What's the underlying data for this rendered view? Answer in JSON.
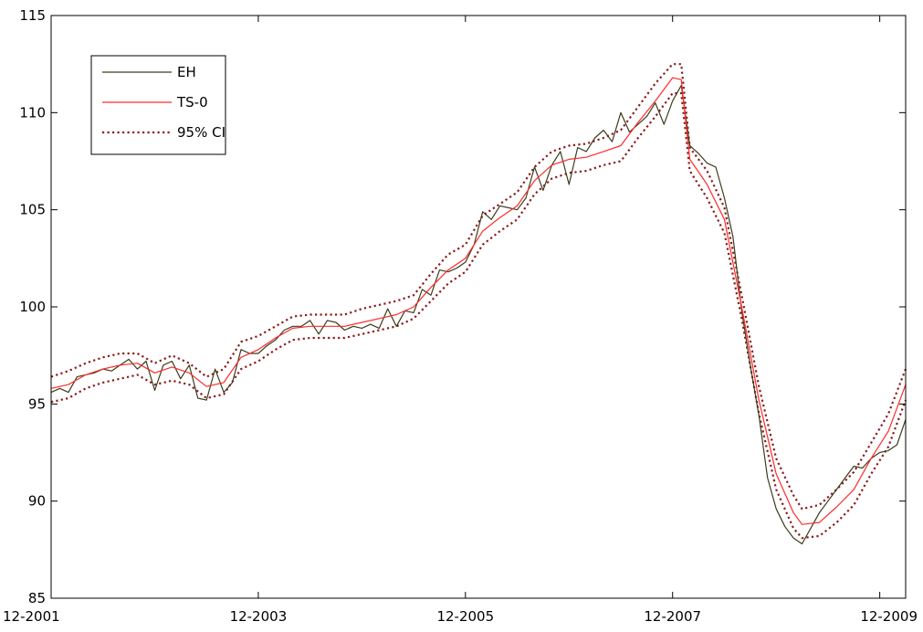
{
  "chart_data": {
    "type": "line",
    "title": "",
    "xlabel": "",
    "ylabel": "",
    "x_range": [
      "2001-12",
      "2009-12"
    ],
    "x_tick_labels": [
      "12-2001",
      "12-2003",
      "12-2005",
      "12-2007",
      "12-2009"
    ],
    "y_ticks": [
      85,
      90,
      95,
      100,
      105,
      110,
      115
    ],
    "ylim": [
      85,
      115
    ],
    "grid": false,
    "legend_position": "top-left",
    "legend": [
      "EH",
      "TS-0",
      "95% CI"
    ],
    "colors": {
      "EH": "#3c3c1e",
      "TS-0": "#ff2a2a",
      "CI": "#8b1a1a"
    },
    "series": [
      {
        "name": "EH",
        "points": [
          [
            "2001-12",
            95.6
          ],
          [
            "2002-01",
            95.8
          ],
          [
            "2002-02",
            95.6
          ],
          [
            "2002-03",
            96.4
          ],
          [
            "2002-04",
            96.5
          ],
          [
            "2002-05",
            96.6
          ],
          [
            "2002-06",
            96.8
          ],
          [
            "2002-07",
            96.7
          ],
          [
            "2002-08",
            97.0
          ],
          [
            "2002-09",
            97.3
          ],
          [
            "2002-10",
            96.8
          ],
          [
            "2002-11",
            97.2
          ],
          [
            "2002-12",
            95.7
          ],
          [
            "2003-01",
            97.0
          ],
          [
            "2003-02",
            97.2
          ],
          [
            "2003-03",
            96.3
          ],
          [
            "2003-04",
            97.0
          ],
          [
            "2003-05",
            95.3
          ],
          [
            "2003-06",
            95.2
          ],
          [
            "2003-07",
            96.8
          ],
          [
            "2003-08",
            95.6
          ],
          [
            "2003-09",
            96.1
          ],
          [
            "2003-10",
            97.8
          ],
          [
            "2003-11",
            97.6
          ],
          [
            "2003-12",
            97.6
          ],
          [
            "2004-01",
            98.0
          ],
          [
            "2004-02",
            98.3
          ],
          [
            "2004-03",
            98.8
          ],
          [
            "2004-04",
            99.0
          ],
          [
            "2004-05",
            99.0
          ],
          [
            "2004-06",
            99.3
          ],
          [
            "2004-07",
            98.6
          ],
          [
            "2004-08",
            99.3
          ],
          [
            "2004-09",
            99.2
          ],
          [
            "2004-10",
            98.8
          ],
          [
            "2004-11",
            99.0
          ],
          [
            "2004-12",
            98.9
          ],
          [
            "2005-01",
            99.1
          ],
          [
            "2005-02",
            98.9
          ],
          [
            "2005-03",
            99.9
          ],
          [
            "2005-04",
            99.0
          ],
          [
            "2005-05",
            99.8
          ],
          [
            "2005-06",
            99.7
          ],
          [
            "2005-07",
            100.9
          ],
          [
            "2005-08",
            100.6
          ],
          [
            "2005-09",
            101.9
          ],
          [
            "2005-10",
            101.8
          ],
          [
            "2005-11",
            102.0
          ],
          [
            "2005-12",
            102.3
          ],
          [
            "2006-01",
            103.2
          ],
          [
            "2006-02",
            104.9
          ],
          [
            "2006-03",
            104.5
          ],
          [
            "2006-04",
            105.2
          ],
          [
            "2006-05",
            105.1
          ],
          [
            "2006-06",
            105.0
          ],
          [
            "2006-07",
            105.6
          ],
          [
            "2006-08",
            107.2
          ],
          [
            "2006-09",
            106.0
          ],
          [
            "2006-10",
            107.3
          ],
          [
            "2006-11",
            108.0
          ],
          [
            "2006-12",
            106.3
          ],
          [
            "2007-01",
            108.2
          ],
          [
            "2007-02",
            108.0
          ],
          [
            "2007-03",
            108.7
          ],
          [
            "2007-04",
            109.1
          ],
          [
            "2007-05",
            108.5
          ],
          [
            "2007-06",
            110.0
          ],
          [
            "2007-07",
            109.0
          ],
          [
            "2007-08",
            109.4
          ],
          [
            "2007-09",
            109.8
          ],
          [
            "2007-10",
            110.5
          ],
          [
            "2007-11",
            109.4
          ],
          [
            "2007-12",
            110.6
          ],
          [
            "2008-01",
            111.4
          ],
          [
            "2008-02",
            108.3
          ],
          [
            "2008-03",
            107.9
          ],
          [
            "2008-04",
            107.4
          ],
          [
            "2008-05",
            107.2
          ],
          [
            "2008-06",
            105.6
          ],
          [
            "2008-07",
            103.6
          ],
          [
            "2008-08",
            99.8
          ],
          [
            "2008-09",
            97.0
          ],
          [
            "2008-10",
            94.4
          ],
          [
            "2008-11",
            91.2
          ],
          [
            "2008-12",
            89.6
          ],
          [
            "2009-01",
            88.7
          ],
          [
            "2009-02",
            88.1
          ],
          [
            "2009-03",
            87.8
          ],
          [
            "2009-04",
            88.6
          ],
          [
            "2009-05",
            89.4
          ],
          [
            "2009-06",
            90.0
          ],
          [
            "2009-07",
            90.6
          ],
          [
            "2009-08",
            91.2
          ],
          [
            "2009-09",
            91.8
          ],
          [
            "2009-10",
            91.7
          ],
          [
            "2009-11",
            92.2
          ],
          [
            "2009-12",
            92.5
          ],
          [
            "2010-01",
            92.6
          ],
          [
            "2010-02",
            92.9
          ],
          [
            "2010-03",
            94.2
          ]
        ]
      },
      {
        "name": "TS-0",
        "points": [
          [
            "2001-12",
            95.8
          ],
          [
            "2002-02",
            96.0
          ],
          [
            "2002-04",
            96.5
          ],
          [
            "2002-06",
            96.8
          ],
          [
            "2002-08",
            97.0
          ],
          [
            "2002-10",
            97.1
          ],
          [
            "2002-12",
            96.6
          ],
          [
            "2003-02",
            96.9
          ],
          [
            "2003-04",
            96.6
          ],
          [
            "2003-06",
            95.9
          ],
          [
            "2003-08",
            96.1
          ],
          [
            "2003-10",
            97.4
          ],
          [
            "2003-12",
            97.8
          ],
          [
            "2004-02",
            98.4
          ],
          [
            "2004-04",
            98.9
          ],
          [
            "2004-06",
            99.0
          ],
          [
            "2004-08",
            99.0
          ],
          [
            "2004-10",
            99.0
          ],
          [
            "2004-12",
            99.2
          ],
          [
            "2005-02",
            99.4
          ],
          [
            "2005-04",
            99.6
          ],
          [
            "2005-06",
            100.0
          ],
          [
            "2005-08",
            101.0
          ],
          [
            "2005-10",
            101.9
          ],
          [
            "2005-12",
            102.5
          ],
          [
            "2006-02",
            103.9
          ],
          [
            "2006-04",
            104.6
          ],
          [
            "2006-06",
            105.2
          ],
          [
            "2006-08",
            106.5
          ],
          [
            "2006-10",
            107.3
          ],
          [
            "2006-12",
            107.6
          ],
          [
            "2007-02",
            107.7
          ],
          [
            "2007-04",
            108.0
          ],
          [
            "2007-06",
            108.3
          ],
          [
            "2007-08",
            109.5
          ],
          [
            "2007-10",
            110.6
          ],
          [
            "2007-12",
            111.8
          ],
          [
            "2008-01",
            111.7
          ],
          [
            "2008-02",
            107.6
          ],
          [
            "2008-04",
            106.3
          ],
          [
            "2008-06",
            104.5
          ],
          [
            "2008-08",
            100.0
          ],
          [
            "2008-10",
            95.2
          ],
          [
            "2008-12",
            91.4
          ],
          [
            "2009-02",
            89.4
          ],
          [
            "2009-03",
            88.8
          ],
          [
            "2009-05",
            88.9
          ],
          [
            "2009-07",
            89.7
          ],
          [
            "2009-09",
            90.6
          ],
          [
            "2009-11",
            92.2
          ],
          [
            "2010-01",
            93.6
          ],
          [
            "2010-03",
            96.0
          ]
        ]
      },
      {
        "name": "95% CI (upper)",
        "points": [
          [
            "2001-12",
            96.4
          ],
          [
            "2002-02",
            96.7
          ],
          [
            "2002-04",
            97.1
          ],
          [
            "2002-06",
            97.4
          ],
          [
            "2002-08",
            97.6
          ],
          [
            "2002-10",
            97.6
          ],
          [
            "2002-12",
            97.1
          ],
          [
            "2003-02",
            97.5
          ],
          [
            "2003-04",
            97.1
          ],
          [
            "2003-06",
            96.4
          ],
          [
            "2003-08",
            96.8
          ],
          [
            "2003-10",
            98.2
          ],
          [
            "2003-12",
            98.5
          ],
          [
            "2004-02",
            99.0
          ],
          [
            "2004-04",
            99.5
          ],
          [
            "2004-06",
            99.6
          ],
          [
            "2004-08",
            99.6
          ],
          [
            "2004-10",
            99.6
          ],
          [
            "2004-12",
            99.9
          ],
          [
            "2005-02",
            100.1
          ],
          [
            "2005-04",
            100.3
          ],
          [
            "2005-06",
            100.6
          ],
          [
            "2005-08",
            101.7
          ],
          [
            "2005-10",
            102.7
          ],
          [
            "2005-12",
            103.2
          ],
          [
            "2006-02",
            104.7
          ],
          [
            "2006-04",
            105.3
          ],
          [
            "2006-06",
            105.9
          ],
          [
            "2006-08",
            107.2
          ],
          [
            "2006-10",
            108.0
          ],
          [
            "2006-12",
            108.3
          ],
          [
            "2007-02",
            108.4
          ],
          [
            "2007-04",
            108.7
          ],
          [
            "2007-06",
            109.1
          ],
          [
            "2007-08",
            110.3
          ],
          [
            "2007-10",
            111.5
          ],
          [
            "2007-12",
            112.5
          ],
          [
            "2008-01",
            112.5
          ],
          [
            "2008-02",
            108.2
          ],
          [
            "2008-04",
            107.0
          ],
          [
            "2008-06",
            105.1
          ],
          [
            "2008-08",
            100.6
          ],
          [
            "2008-10",
            95.9
          ],
          [
            "2008-12",
            92.2
          ],
          [
            "2009-02",
            90.3
          ],
          [
            "2009-03",
            89.6
          ],
          [
            "2009-05",
            89.8
          ],
          [
            "2009-07",
            90.6
          ],
          [
            "2009-09",
            91.5
          ],
          [
            "2009-11",
            93.0
          ],
          [
            "2010-01",
            94.5
          ],
          [
            "2010-03",
            96.8
          ]
        ]
      },
      {
        "name": "95% CI (lower)",
        "points": [
          [
            "2001-12",
            95.1
          ],
          [
            "2002-02",
            95.3
          ],
          [
            "2002-04",
            95.8
          ],
          [
            "2002-06",
            96.1
          ],
          [
            "2002-08",
            96.3
          ],
          [
            "2002-10",
            96.5
          ],
          [
            "2002-12",
            96.0
          ],
          [
            "2003-02",
            96.2
          ],
          [
            "2003-04",
            96.0
          ],
          [
            "2003-06",
            95.3
          ],
          [
            "2003-08",
            95.5
          ],
          [
            "2003-10",
            96.8
          ],
          [
            "2003-12",
            97.2
          ],
          [
            "2004-02",
            97.8
          ],
          [
            "2004-04",
            98.3
          ],
          [
            "2004-06",
            98.4
          ],
          [
            "2004-08",
            98.4
          ],
          [
            "2004-10",
            98.4
          ],
          [
            "2004-12",
            98.6
          ],
          [
            "2005-02",
            98.8
          ],
          [
            "2005-04",
            99.0
          ],
          [
            "2005-06",
            99.4
          ],
          [
            "2005-08",
            100.3
          ],
          [
            "2005-10",
            101.2
          ],
          [
            "2005-12",
            101.8
          ],
          [
            "2006-02",
            103.2
          ],
          [
            "2006-04",
            103.9
          ],
          [
            "2006-06",
            104.5
          ],
          [
            "2006-08",
            105.8
          ],
          [
            "2006-10",
            106.6
          ],
          [
            "2006-12",
            106.9
          ],
          [
            "2007-02",
            107.0
          ],
          [
            "2007-04",
            107.3
          ],
          [
            "2007-06",
            107.5
          ],
          [
            "2007-08",
            108.7
          ],
          [
            "2007-10",
            109.8
          ],
          [
            "2007-12",
            111.0
          ],
          [
            "2008-01",
            111.0
          ],
          [
            "2008-02",
            107.0
          ],
          [
            "2008-04",
            105.6
          ],
          [
            "2008-06",
            103.8
          ],
          [
            "2008-08",
            99.4
          ],
          [
            "2008-10",
            94.5
          ],
          [
            "2008-12",
            90.6
          ],
          [
            "2009-02",
            88.6
          ],
          [
            "2009-03",
            88.1
          ],
          [
            "2009-05",
            88.2
          ],
          [
            "2009-07",
            88.9
          ],
          [
            "2009-09",
            89.8
          ],
          [
            "2009-11",
            91.4
          ],
          [
            "2010-01",
            92.8
          ],
          [
            "2010-03",
            95.2
          ]
        ]
      }
    ]
  }
}
